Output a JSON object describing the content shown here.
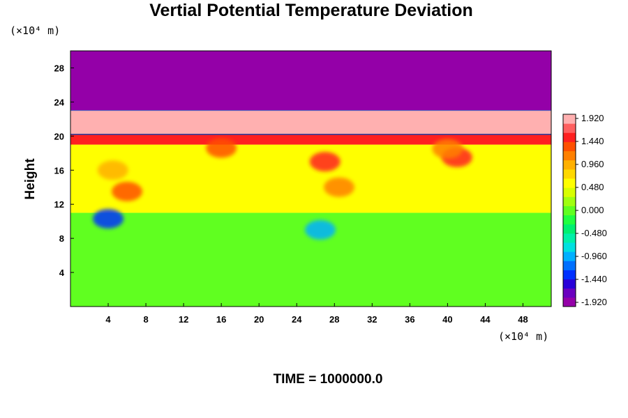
{
  "chart_data": {
    "type": "heatmap",
    "title": "Vertial Potential Temperature Deviation",
    "ylabel": "Height",
    "x_unit_label": "(×10⁴ m)",
    "y_unit_label": "(×10⁴ m)",
    "footer": "TIME = 1000000.0",
    "xlim": [
      0,
      51
    ],
    "ylim": [
      0,
      30
    ],
    "xticks": [
      "4",
      "8",
      "12",
      "16",
      "20",
      "24",
      "28",
      "32",
      "36",
      "40",
      "44",
      "48"
    ],
    "yticks": [
      "4",
      "8",
      "12",
      "16",
      "20",
      "24",
      "28"
    ],
    "colorbar": {
      "min": -2.0,
      "max": 2.0,
      "labels": [
        "1.920",
        "1.440",
        "0.960",
        "0.480",
        "0.000",
        "-0.480",
        "-0.960",
        "-1.440",
        "-1.920"
      ],
      "colors": [
        "#9400a8",
        "#6a00bf",
        "#2800d8",
        "#0030ff",
        "#0070ff",
        "#00b0ff",
        "#00e0e0",
        "#00f0a8",
        "#00f070",
        "#20ff40",
        "#60ff20",
        "#a0ff10",
        "#d8ff00",
        "#ffff00",
        "#ffd800",
        "#ffb000",
        "#ff8000",
        "#ff5000",
        "#ff2020",
        "#ff6060",
        "#ffb0b0"
      ]
    },
    "bands": [
      {
        "from": 0,
        "to": 11,
        "value": 0.05
      },
      {
        "from": 11,
        "to": 19,
        "value": 0.6
      },
      {
        "from": 19,
        "to": 20.2,
        "value": 1.6
      },
      {
        "from": 20.2,
        "to": 23,
        "value": 1.95
      },
      {
        "from": 23,
        "to": 30,
        "value": -1.95
      }
    ],
    "features": [
      {
        "x": 6,
        "y": 13.5,
        "value": 1.3
      },
      {
        "x": 4.5,
        "y": 16,
        "value": 1.0
      },
      {
        "x": 27,
        "y": 17,
        "value": 1.6
      },
      {
        "x": 28.5,
        "y": 14,
        "value": 1.2
      },
      {
        "x": 41,
        "y": 17.5,
        "value": 1.5
      },
      {
        "x": 40,
        "y": 18.5,
        "value": 1.2
      },
      {
        "x": 16,
        "y": 18.6,
        "value": 1.4
      },
      {
        "x": 4,
        "y": 10.3,
        "value": -1.4
      },
      {
        "x": 26.5,
        "y": 9,
        "value": -0.9
      }
    ]
  }
}
